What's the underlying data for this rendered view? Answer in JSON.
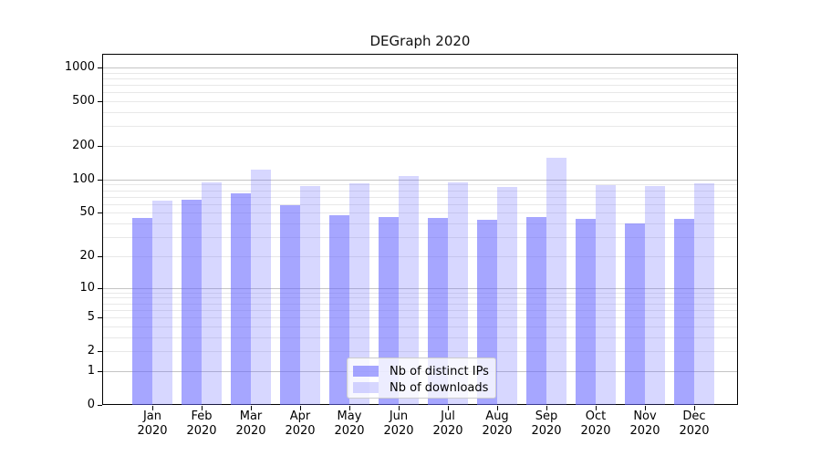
{
  "chart_data": {
    "type": "bar",
    "title": "DEGraph 2020",
    "categories": [
      "Jan",
      "Feb",
      "Mar",
      "Apr",
      "May",
      "Jun",
      "Jul",
      "Aug",
      "Sep",
      "Oct",
      "Nov",
      "Dec"
    ],
    "category_sublabel": "2020",
    "series": [
      {
        "name": "Nb of distinct IPs",
        "color": "rgba(102,102,255,0.58)",
        "values": [
          45,
          66,
          75,
          59,
          48,
          46,
          45,
          43,
          46,
          44,
          40,
          44
        ]
      },
      {
        "name": "Nb of downloads",
        "color": "rgba(102,102,255,0.26)",
        "values": [
          65,
          94,
          123,
          87,
          93,
          107,
          94,
          85,
          158,
          89,
          87,
          93
        ]
      }
    ],
    "yscale": "log1p",
    "y_ticks": [
      0,
      1,
      2,
      5,
      10,
      20,
      50,
      100,
      200,
      500,
      1000
    ],
    "y_major_gridlines": [
      1,
      10,
      100,
      1000
    ],
    "ylim": [
      0,
      1325
    ],
    "grid": true,
    "legend_position": "inside-bottom-center",
    "xlabel": "",
    "ylabel": ""
  },
  "colors": {
    "grid_major": "#c4c4c4",
    "grid_minor": "#e8e8e8",
    "axis": "#000000",
    "background": "#ffffff",
    "legend_border": "#cccccc"
  }
}
